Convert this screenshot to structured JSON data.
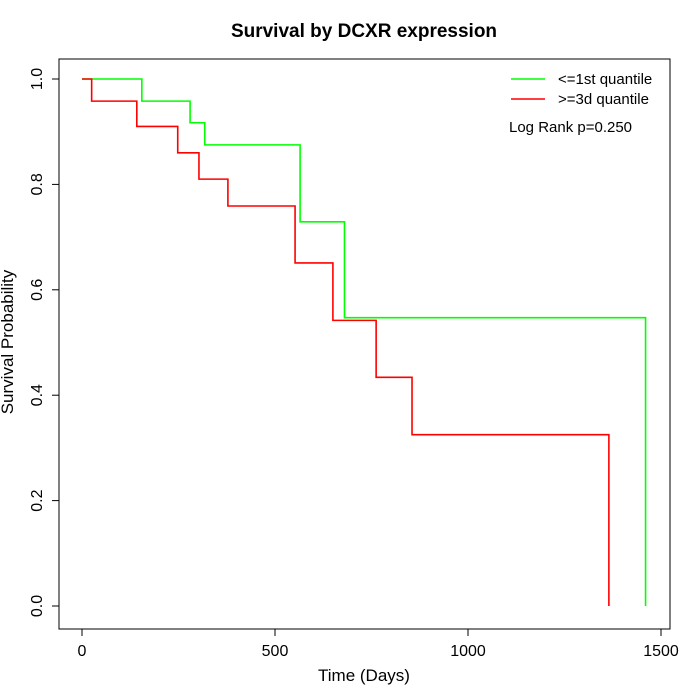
{
  "chart_data": {
    "type": "line",
    "title": "Survival by DCXR expression",
    "xlabel": "Time (Days)",
    "ylabel": "Survival Probability",
    "xlim": [
      0,
      1500
    ],
    "ylim": [
      0,
      1.0
    ],
    "xticks": [
      0,
      500,
      1000,
      1500
    ],
    "yticks": [
      0.0,
      0.2,
      0.4,
      0.6,
      0.8,
      1.0
    ],
    "xtick_labels": [
      "0",
      "500",
      "1000",
      "1500"
    ],
    "ytick_labels": [
      "0.0",
      "0.2",
      "0.4",
      "0.6",
      "0.8",
      "1.0"
    ],
    "grid": false,
    "legend_position": "top-right",
    "annotation": "Log Rank p=0.250",
    "series": [
      {
        "name": "<=1st quantile",
        "color": "#00ff00",
        "step": true,
        "x": [
          0,
          155,
          280,
          318,
          565,
          680,
          1460,
          1460
        ],
        "y": [
          1.0,
          0.958,
          0.917,
          0.875,
          0.729,
          0.547,
          0.547,
          0.0
        ]
      },
      {
        "name": ">=3d quantile",
        "color": "#ff0000",
        "step": true,
        "x": [
          0,
          25,
          142,
          248,
          303,
          378,
          552,
          650,
          762,
          855,
          1365,
          1365
        ],
        "y": [
          1.0,
          0.958,
          0.91,
          0.86,
          0.81,
          0.759,
          0.651,
          0.542,
          0.434,
          0.325,
          0.325,
          0.0
        ]
      }
    ]
  }
}
